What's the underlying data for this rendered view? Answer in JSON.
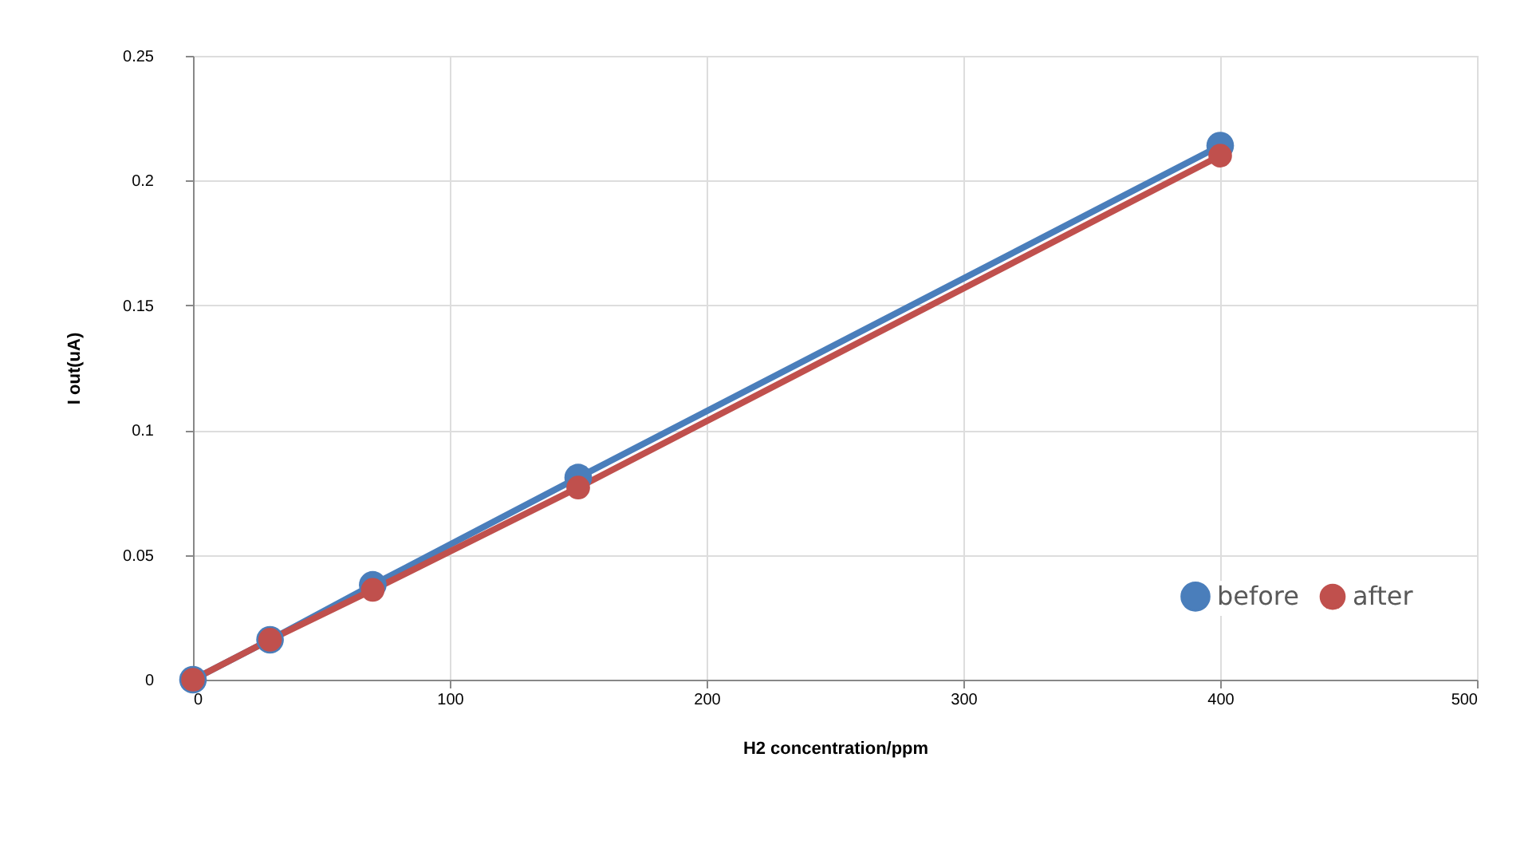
{
  "chart_data": {
    "type": "line",
    "xlabel": "H2 concentration/ppm",
    "ylabel": "I out(uA)",
    "x": [
      0,
      30,
      70,
      150,
      400
    ],
    "series": [
      {
        "name": "before",
        "color": "#4a7ebb",
        "values": [
          0,
          0.016,
          0.038,
          0.081,
          0.214
        ]
      },
      {
        "name": "after",
        "color": "#c0504d",
        "values": [
          0,
          0.016,
          0.036,
          0.077,
          0.21
        ]
      }
    ],
    "xlim": [
      0,
      500
    ],
    "xticks": [
      0,
      100,
      200,
      300,
      400,
      500
    ],
    "ylim": [
      0,
      0.25
    ],
    "yticks": [
      0,
      0.05,
      0.1,
      0.15,
      0.2,
      0.25
    ],
    "grid": true,
    "legend": "bottom right",
    "marker": "circle",
    "line_style": "solid"
  }
}
